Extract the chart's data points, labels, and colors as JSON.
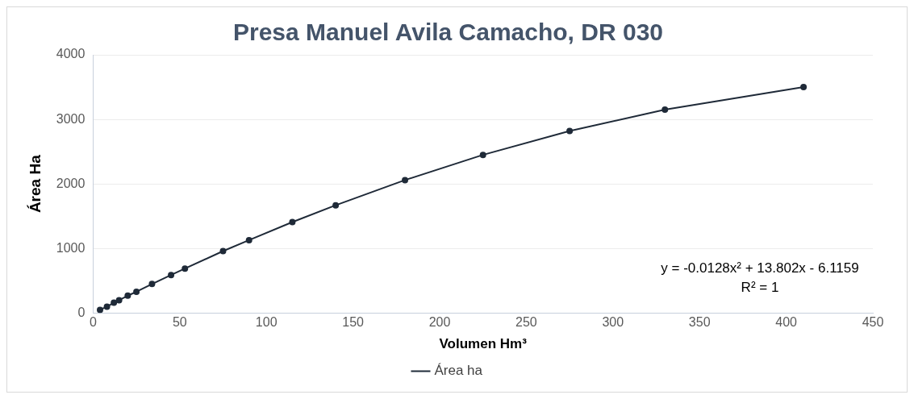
{
  "chart_data": {
    "type": "line",
    "title": "Presa Manuel Avila Camacho, DR 030",
    "xlabel": "Volumen Hm³",
    "ylabel": "Área Ha",
    "x": [
      4,
      8,
      12,
      15,
      20,
      25,
      34,
      45,
      53,
      75,
      90,
      115,
      140,
      180,
      225,
      275,
      330,
      410
    ],
    "series": [
      {
        "name": "Área ha",
        "color": "#1f2a38",
        "values": [
          50,
          100,
          160,
          200,
          270,
          330,
          450,
          590,
          690,
          960,
          1130,
          1410,
          1670,
          2060,
          2450,
          2820,
          3150,
          3500
        ]
      }
    ],
    "xlim": [
      0,
      450
    ],
    "xticks": [
      0,
      50,
      100,
      150,
      200,
      250,
      300,
      350,
      400,
      450
    ],
    "ylim": [
      0,
      4000
    ],
    "yticks": [
      0,
      1000,
      2000,
      3000,
      4000
    ],
    "grid": "y",
    "legend": "bottom",
    "marker": "circle",
    "line_style": "solid",
    "annotations": [
      "y = -0.0128x² + 13.802x - 6.1159",
      "R² = 1"
    ]
  }
}
